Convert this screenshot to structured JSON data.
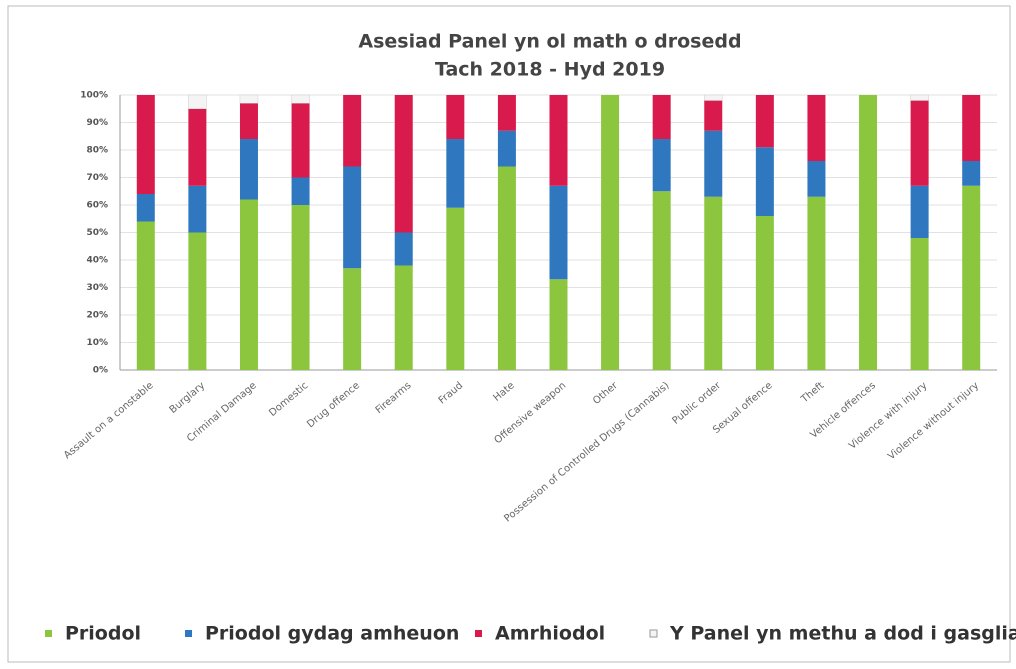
{
  "chart_data": {
    "type": "stacked_bar",
    "title": "Asesiad Panel yn ol math o drosedd",
    "subtitle": "Tach 2018 - Hyd 2019",
    "categories": [
      "Assault on a constable",
      "Burglary",
      "Criminal Damage",
      "Domestic",
      "Drug offence",
      "Firearms",
      "Fraud",
      "Hate",
      "Offensive weapon",
      "Other",
      "Possession of Controlled Drugs (Cannabis)",
      "Public order",
      "Sexual offence",
      "Theft",
      "Vehicle offences",
      "Violence with injury",
      "Violence without injury"
    ],
    "series": [
      {
        "name": "Priodol",
        "color": "#8cc63e",
        "values": [
          54,
          50,
          62,
          60,
          37,
          38,
          59,
          74,
          33,
          100,
          65,
          63,
          56,
          63,
          100,
          48,
          67
        ]
      },
      {
        "name": "Priodol gydag amheuon",
        "color": "#2f78c0",
        "values": [
          10,
          17,
          22,
          10,
          37,
          12,
          25,
          13,
          34,
          0,
          19,
          24,
          25,
          13,
          0,
          19,
          9
        ]
      },
      {
        "name": "Amrhiodol",
        "color": "#d81a4c",
        "values": [
          36,
          28,
          13,
          27,
          26,
          50,
          16,
          13,
          33,
          0,
          16,
          11,
          19,
          24,
          0,
          31,
          24
        ]
      },
      {
        "name": "Y Panel yn methu a dod i gasgliad",
        "color": "#f4f4f4",
        "values": [
          0,
          5,
          3,
          3,
          0,
          0,
          0,
          0,
          0,
          0,
          0,
          2,
          0,
          0,
          0,
          2,
          0
        ]
      }
    ],
    "ylim": [
      0,
      100
    ],
    "yticks": [
      {
        "value": 0,
        "label": "0%"
      },
      {
        "value": 10,
        "label": "10%"
      },
      {
        "value": 20,
        "label": "20%"
      },
      {
        "value": 30,
        "label": "30%"
      },
      {
        "value": 40,
        "label": "40%"
      },
      {
        "value": 50,
        "label": "50%"
      },
      {
        "value": 60,
        "label": "60%"
      },
      {
        "value": 70,
        "label": "70%"
      },
      {
        "value": 80,
        "label": "80%"
      },
      {
        "value": 90,
        "label": "90%"
      },
      {
        "value": 100,
        "label": "100%"
      }
    ],
    "grid": true,
    "legend": "bottom"
  }
}
